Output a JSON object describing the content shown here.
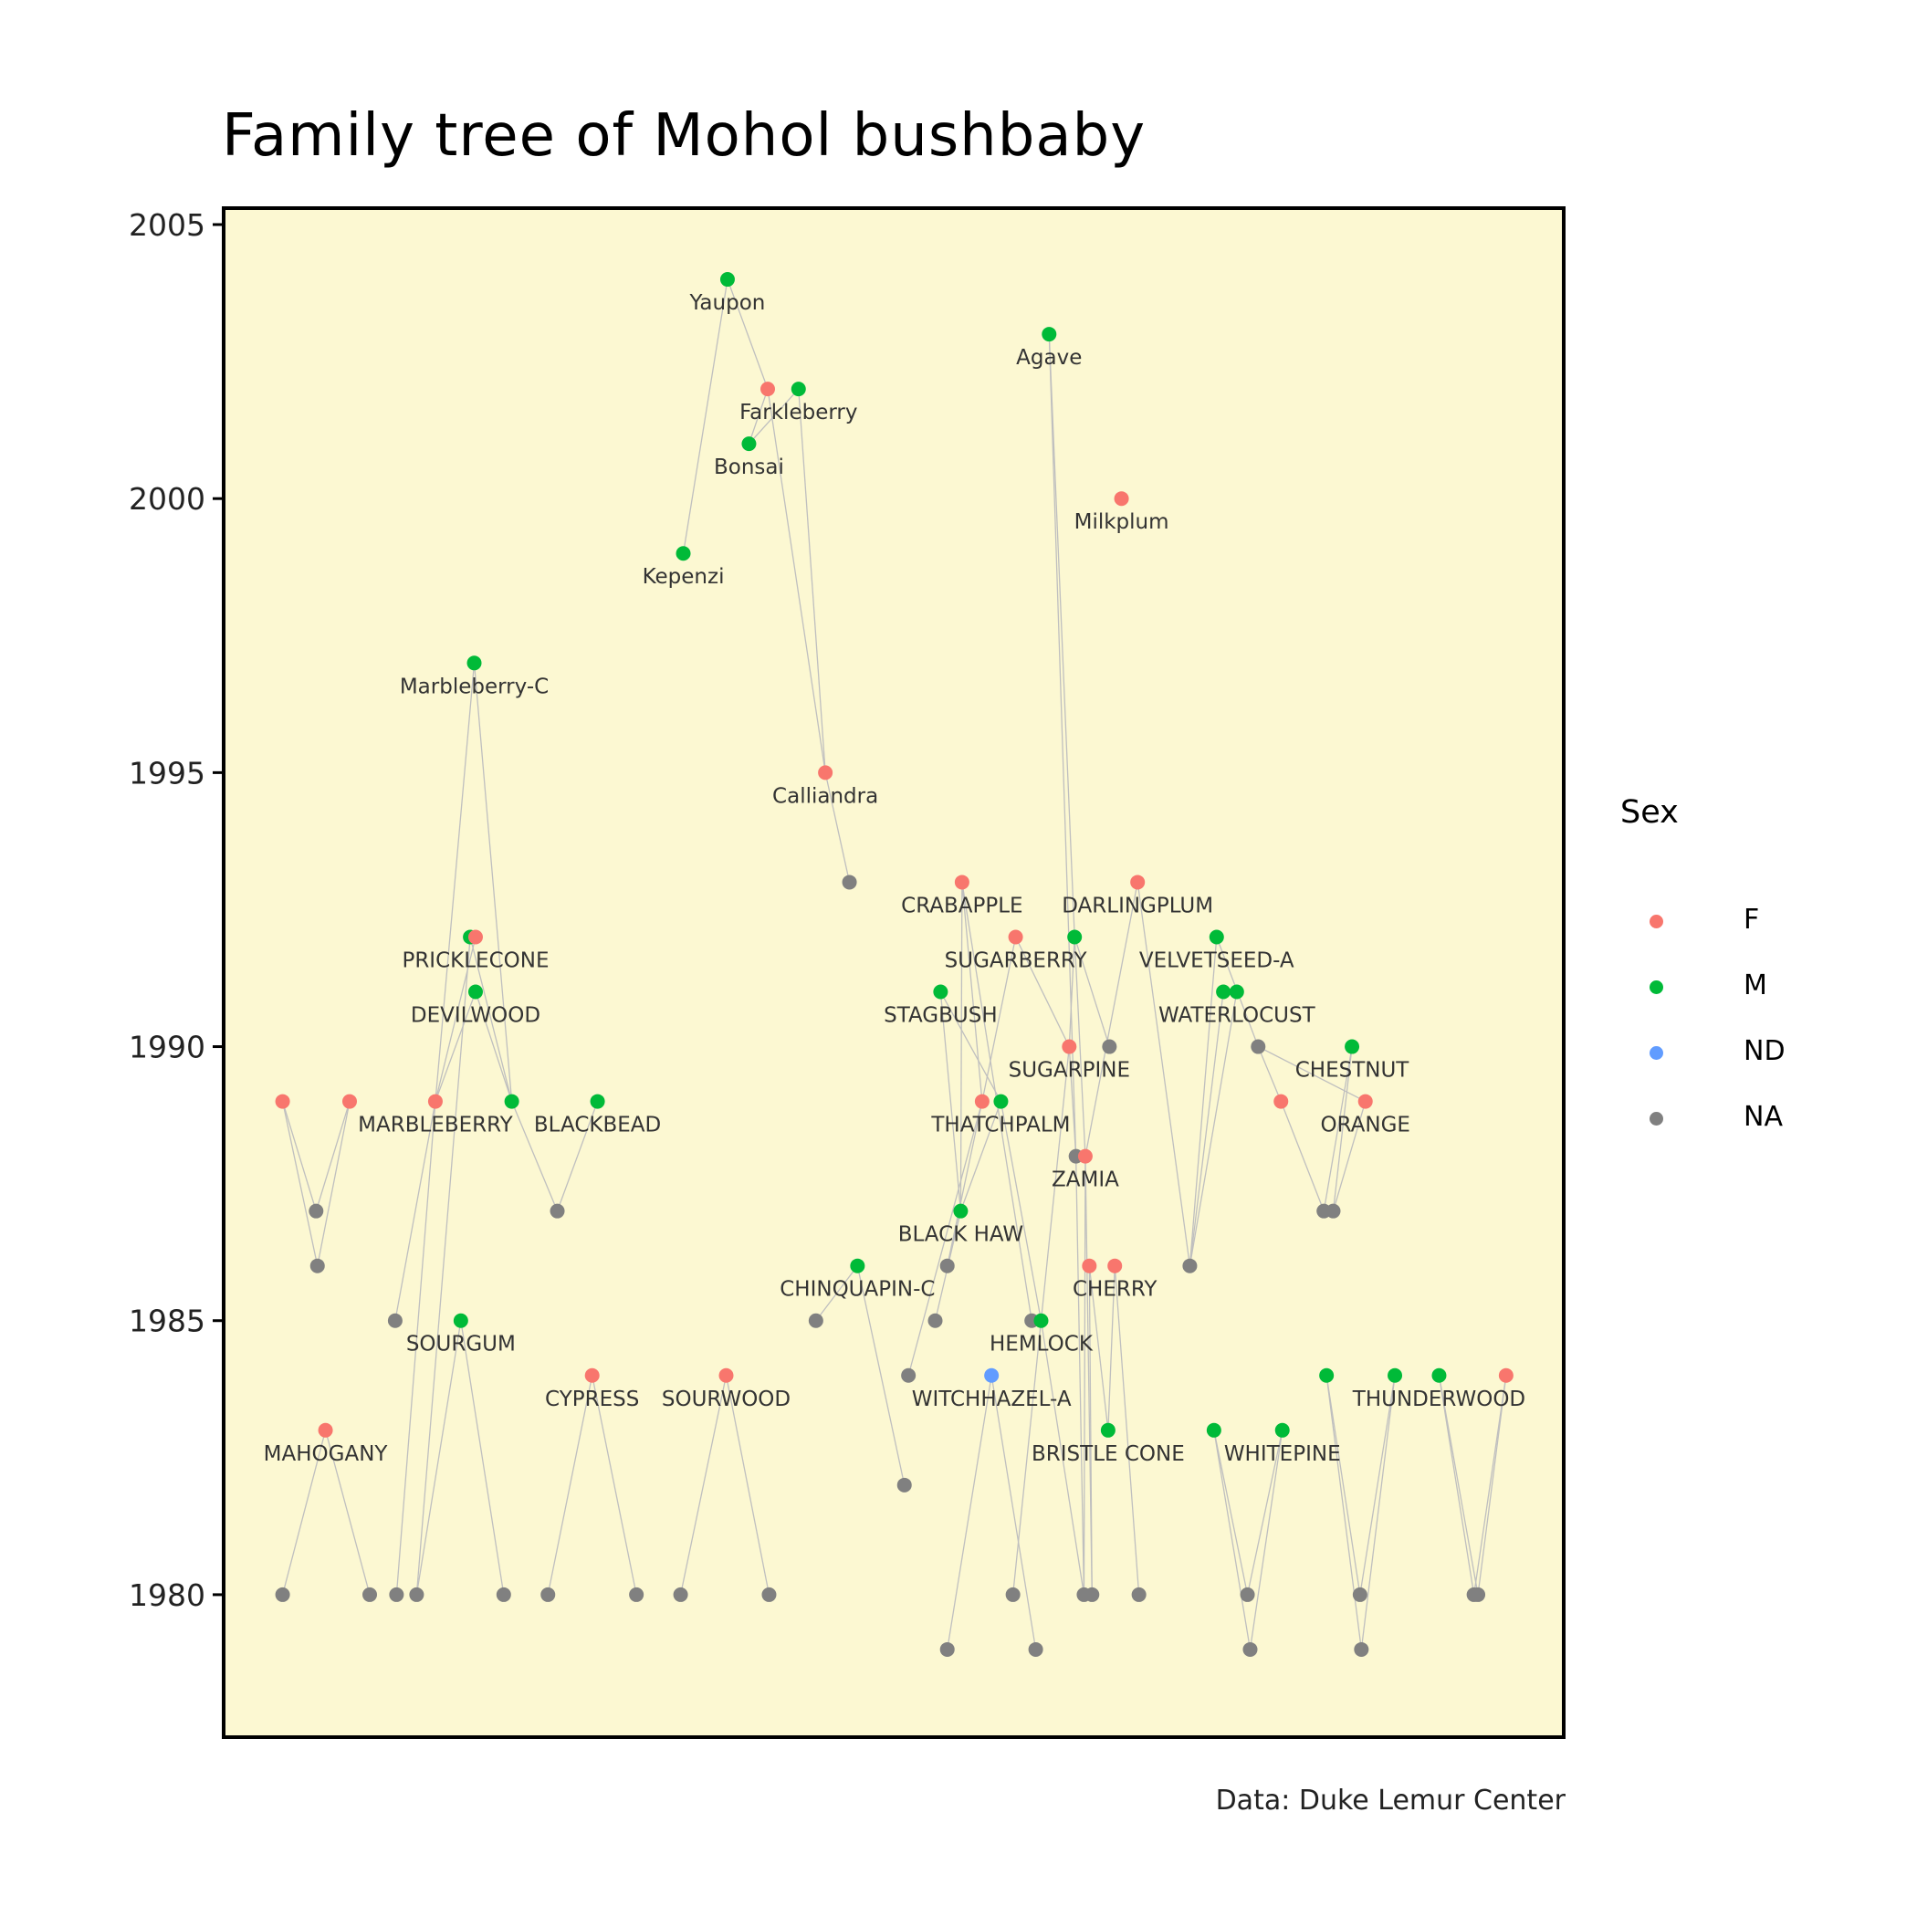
{
  "title": "Family tree of Mohol bushbaby",
  "caption": "Data: Duke Lemur Center",
  "legend": {
    "title": "Sex",
    "items": [
      {
        "label": "F",
        "color": "#F8766D"
      },
      {
        "label": "M",
        "color": "#00BA38"
      },
      {
        "label": "ND",
        "color": "#619CFF"
      },
      {
        "label": "NA",
        "color": "#808080"
      }
    ]
  },
  "chart_data": {
    "type": "scatter",
    "title": "Family tree of Mohol bushbaby",
    "xlabel": "",
    "ylabel": "",
    "x_axis_visible": false,
    "xlim": [
      0,
      100
    ],
    "ylim": [
      1977.4,
      2005.3
    ],
    "y_ticks": [
      1980,
      1985,
      1990,
      1995,
      2000,
      2005
    ],
    "background": "#FCF8D2",
    "grid": false,
    "legend_position": "right",
    "edge_color": "#BFBFBF",
    "colors": {
      "F": "#F8766D",
      "M": "#00BA38",
      "ND": "#619CFF",
      "NA": "#808080"
    },
    "points": [
      {
        "id": "Yaupon",
        "label": "Yaupon",
        "x": 37.6,
        "y": 2004,
        "sex": "M"
      },
      {
        "id": "Agave",
        "label": "Agave",
        "x": 61.6,
        "y": 2003,
        "sex": "M"
      },
      {
        "id": "FarkF",
        "label": "",
        "x": 40.6,
        "y": 2002,
        "sex": "F"
      },
      {
        "id": "Farkleberry",
        "label": "Farkleberry",
        "x": 42.9,
        "y": 2002,
        "sex": "M"
      },
      {
        "id": "Bonsai",
        "label": "Bonsai",
        "x": 39.2,
        "y": 2001,
        "sex": "M"
      },
      {
        "id": "Milkplum",
        "label": "Milkplum",
        "x": 67.0,
        "y": 2000,
        "sex": "F"
      },
      {
        "id": "Kepenzi",
        "label": "Kepenzi",
        "x": 34.3,
        "y": 1999,
        "sex": "M"
      },
      {
        "id": "MarbleberryC",
        "label": "Marbleberry-C",
        "x": 18.7,
        "y": 1997,
        "sex": "M"
      },
      {
        "id": "Calliandra",
        "label": "Calliandra",
        "x": 44.9,
        "y": 1995,
        "sex": "F"
      },
      {
        "id": "n1993",
        "label": "",
        "x": 46.7,
        "y": 1993,
        "sex": "NA"
      },
      {
        "id": "CRABAPPLE",
        "label": "CRABAPPLE",
        "x": 55.1,
        "y": 1993,
        "sex": "F"
      },
      {
        "id": "DARLINGPLUM",
        "label": "DARLINGPLUM",
        "x": 68.2,
        "y": 1993,
        "sex": "F"
      },
      {
        "id": "PrickM",
        "label": "",
        "x": 18.4,
        "y": 1992,
        "sex": "M"
      },
      {
        "id": "PRICKLECONE",
        "label": "PRICKLECONE",
        "x": 18.8,
        "y": 1992,
        "sex": "F"
      },
      {
        "id": "SUGARBERRY",
        "label": "SUGARBERRY",
        "x": 59.1,
        "y": 1992,
        "sex": "F"
      },
      {
        "id": "SugM",
        "label": "",
        "x": 63.5,
        "y": 1992,
        "sex": "M"
      },
      {
        "id": "VELVETSEED",
        "label": "VELVETSEED-A",
        "x": 74.1,
        "y": 1992,
        "sex": "M"
      },
      {
        "id": "DEVILWOOD",
        "label": "DEVILWOOD",
        "x": 18.8,
        "y": 1991,
        "sex": "M"
      },
      {
        "id": "STAGBUSH",
        "label": "STAGBUSH",
        "x": 53.5,
        "y": 1991,
        "sex": "M"
      },
      {
        "id": "WatM1",
        "label": "",
        "x": 74.6,
        "y": 1991,
        "sex": "M"
      },
      {
        "id": "WATERLOCUST",
        "label": "WATERLOCUST",
        "x": 75.6,
        "y": 1991,
        "sex": "M"
      },
      {
        "id": "SUGARPINE",
        "label": "SUGARPINE",
        "x": 63.1,
        "y": 1990,
        "sex": "F"
      },
      {
        "id": "n1990a",
        "label": "",
        "x": 66.1,
        "y": 1990,
        "sex": "NA"
      },
      {
        "id": "n1990b",
        "label": "",
        "x": 77.2,
        "y": 1990,
        "sex": "NA"
      },
      {
        "id": "CHESTNUT",
        "label": "CHESTNUT",
        "x": 84.2,
        "y": 1990,
        "sex": "M"
      },
      {
        "id": "F1",
        "label": "",
        "x": 4.4,
        "y": 1989,
        "sex": "F"
      },
      {
        "id": "F2",
        "label": "",
        "x": 9.4,
        "y": 1989,
        "sex": "F"
      },
      {
        "id": "MARBLEBERRY",
        "label": "MARBLEBERRY",
        "x": 15.8,
        "y": 1989,
        "sex": "F"
      },
      {
        "id": "M1989",
        "label": "",
        "x": 21.5,
        "y": 1989,
        "sex": "M"
      },
      {
        "id": "BLACKBEAD",
        "label": "BLACKBEAD",
        "x": 27.9,
        "y": 1989,
        "sex": "M"
      },
      {
        "id": "ThatF",
        "label": "",
        "x": 56.6,
        "y": 1989,
        "sex": "F"
      },
      {
        "id": "THATCHPALM",
        "label": "THATCHPALM",
        "x": 58.0,
        "y": 1989,
        "sex": "M"
      },
      {
        "id": "F1989b",
        "label": "",
        "x": 78.9,
        "y": 1989,
        "sex": "F"
      },
      {
        "id": "ORANGE",
        "label": "ORANGE",
        "x": 85.2,
        "y": 1989,
        "sex": "F"
      },
      {
        "id": "n1988",
        "label": "",
        "x": 63.6,
        "y": 1988,
        "sex": "NA"
      },
      {
        "id": "ZAMIA",
        "label": "ZAMIA",
        "x": 64.3,
        "y": 1988,
        "sex": "F"
      },
      {
        "id": "n1987a",
        "label": "",
        "x": 6.9,
        "y": 1987,
        "sex": "NA"
      },
      {
        "id": "n1987b",
        "label": "",
        "x": 24.9,
        "y": 1987,
        "sex": "NA"
      },
      {
        "id": "BLACKHAW",
        "label": "BLACK HAW",
        "x": 55.0,
        "y": 1987,
        "sex": "M"
      },
      {
        "id": "n1987c",
        "label": "",
        "x": 82.1,
        "y": 1987,
        "sex": "NA"
      },
      {
        "id": "n1987d",
        "label": "",
        "x": 82.8,
        "y": 1987,
        "sex": "NA"
      },
      {
        "id": "n1986a",
        "label": "",
        "x": 7.0,
        "y": 1986,
        "sex": "NA"
      },
      {
        "id": "CHINQUAPIN",
        "label": "CHINQUAPIN-C",
        "x": 47.3,
        "y": 1986,
        "sex": "M"
      },
      {
        "id": "n1986b",
        "label": "",
        "x": 54.0,
        "y": 1986,
        "sex": "NA"
      },
      {
        "id": "CherF",
        "label": "",
        "x": 64.6,
        "y": 1986,
        "sex": "F"
      },
      {
        "id": "CHERRY",
        "label": "CHERRY",
        "x": 66.5,
        "y": 1986,
        "sex": "F"
      },
      {
        "id": "n1986c",
        "label": "",
        "x": 72.1,
        "y": 1986,
        "sex": "NA"
      },
      {
        "id": "n1985a",
        "label": "",
        "x": 12.8,
        "y": 1985,
        "sex": "NA"
      },
      {
        "id": "SOURGUM",
        "label": "SOURGUM",
        "x": 17.7,
        "y": 1985,
        "sex": "M"
      },
      {
        "id": "n1985b",
        "label": "",
        "x": 44.2,
        "y": 1985,
        "sex": "NA"
      },
      {
        "id": "n1985c",
        "label": "",
        "x": 53.1,
        "y": 1985,
        "sex": "NA"
      },
      {
        "id": "n1985d",
        "label": "",
        "x": 60.3,
        "y": 1985,
        "sex": "NA"
      },
      {
        "id": "HEMLOCK",
        "label": "HEMLOCK",
        "x": 61.0,
        "y": 1985,
        "sex": "M"
      },
      {
        "id": "CYPRESS",
        "label": "CYPRESS",
        "x": 27.5,
        "y": 1984,
        "sex": "F"
      },
      {
        "id": "SOURWOOD",
        "label": "SOURWOOD",
        "x": 37.5,
        "y": 1984,
        "sex": "F"
      },
      {
        "id": "n1984",
        "label": "",
        "x": 51.1,
        "y": 1984,
        "sex": "NA"
      },
      {
        "id": "WITCHHAZEL",
        "label": "WITCHHAZEL-A",
        "x": 57.3,
        "y": 1984,
        "sex": "ND"
      },
      {
        "id": "M1984a",
        "label": "",
        "x": 82.3,
        "y": 1984,
        "sex": "M"
      },
      {
        "id": "M1984b",
        "label": "",
        "x": 87.4,
        "y": 1984,
        "sex": "M"
      },
      {
        "id": "THUNDERWOOD",
        "label": "THUNDERWOOD",
        "x": 90.7,
        "y": 1984,
        "sex": "M"
      },
      {
        "id": "F1984",
        "label": "",
        "x": 95.7,
        "y": 1984,
        "sex": "F"
      },
      {
        "id": "MAHOGANY",
        "label": "MAHOGANY",
        "x": 7.6,
        "y": 1983,
        "sex": "F"
      },
      {
        "id": "BRISTLECONE",
        "label": "BRISTLE CONE",
        "x": 66.0,
        "y": 1983,
        "sex": "M"
      },
      {
        "id": "M1983",
        "label": "",
        "x": 73.9,
        "y": 1983,
        "sex": "M"
      },
      {
        "id": "WHITEPINE",
        "label": "WHITEPINE",
        "x": 79.0,
        "y": 1983,
        "sex": "M"
      },
      {
        "id": "n1982",
        "label": "",
        "x": 50.8,
        "y": 1982,
        "sex": "NA"
      },
      {
        "id": "b01",
        "label": "",
        "x": 4.4,
        "y": 1980,
        "sex": "NA"
      },
      {
        "id": "b02",
        "label": "",
        "x": 10.9,
        "y": 1980,
        "sex": "NA"
      },
      {
        "id": "b03",
        "label": "",
        "x": 12.9,
        "y": 1980,
        "sex": "NA"
      },
      {
        "id": "b04",
        "label": "",
        "x": 14.4,
        "y": 1980,
        "sex": "NA"
      },
      {
        "id": "b05",
        "label": "",
        "x": 20.9,
        "y": 1980,
        "sex": "NA"
      },
      {
        "id": "b06",
        "label": "",
        "x": 24.2,
        "y": 1980,
        "sex": "NA"
      },
      {
        "id": "b07",
        "label": "",
        "x": 30.8,
        "y": 1980,
        "sex": "NA"
      },
      {
        "id": "b08",
        "label": "",
        "x": 34.1,
        "y": 1980,
        "sex": "NA"
      },
      {
        "id": "b09",
        "label": "",
        "x": 40.7,
        "y": 1980,
        "sex": "NA"
      },
      {
        "id": "b10",
        "label": "",
        "x": 58.9,
        "y": 1980,
        "sex": "NA"
      },
      {
        "id": "b11",
        "label": "",
        "x": 64.2,
        "y": 1980,
        "sex": "NA"
      },
      {
        "id": "b12",
        "label": "",
        "x": 64.8,
        "y": 1980,
        "sex": "NA"
      },
      {
        "id": "b13",
        "label": "",
        "x": 68.3,
        "y": 1980,
        "sex": "NA"
      },
      {
        "id": "b14",
        "label": "",
        "x": 76.4,
        "y": 1980,
        "sex": "NA"
      },
      {
        "id": "b15",
        "label": "",
        "x": 84.8,
        "y": 1980,
        "sex": "NA"
      },
      {
        "id": "b16",
        "label": "",
        "x": 93.3,
        "y": 1980,
        "sex": "NA"
      },
      {
        "id": "b17",
        "label": "",
        "x": 93.6,
        "y": 1980,
        "sex": "NA"
      },
      {
        "id": "c01",
        "label": "",
        "x": 54.0,
        "y": 1979,
        "sex": "NA"
      },
      {
        "id": "c02",
        "label": "",
        "x": 60.6,
        "y": 1979,
        "sex": "NA"
      },
      {
        "id": "c03",
        "label": "",
        "x": 76.6,
        "y": 1979,
        "sex": "NA"
      },
      {
        "id": "c04",
        "label": "",
        "x": 84.9,
        "y": 1979,
        "sex": "NA"
      }
    ],
    "edges": [
      [
        "Yaupon",
        "Kepenzi"
      ],
      [
        "Yaupon",
        "FarkF"
      ],
      [
        "FarkF",
        "Bonsai"
      ],
      [
        "Farkleberry",
        "Bonsai"
      ],
      [
        "FarkF",
        "Calliandra"
      ],
      [
        "Farkleberry",
        "Calliandra"
      ],
      [
        "Calliandra",
        "n1993"
      ],
      [
        "Agave",
        "SugM"
      ],
      [
        "Agave",
        "n1988"
      ],
      [
        "MarbleberryC",
        "MARBLEBERRY"
      ],
      [
        "MarbleberryC",
        "M1989"
      ],
      [
        "PRICKLECONE",
        "MARBLEBERRY"
      ],
      [
        "PrickM",
        "M1989"
      ],
      [
        "DEVILWOOD",
        "MARBLEBERRY"
      ],
      [
        "DEVILWOOD",
        "M1989"
      ],
      [
        "F1",
        "n1987a"
      ],
      [
        "F1",
        "n1986a"
      ],
      [
        "F2",
        "n1987a"
      ],
      [
        "F2",
        "n1986a"
      ],
      [
        "MARBLEBERRY",
        "n1985a"
      ],
      [
        "MARBLEBERRY",
        "b03"
      ],
      [
        "PrickM",
        "b04"
      ],
      [
        "M1989",
        "n1987b"
      ],
      [
        "BLACKBEAD",
        "n1987b"
      ],
      [
        "SOURGUM",
        "b04"
      ],
      [
        "SOURGUM",
        "b05"
      ],
      [
        "MAHOGANY",
        "b01"
      ],
      [
        "MAHOGANY",
        "b02"
      ],
      [
        "CYPRESS",
        "b06"
      ],
      [
        "CYPRESS",
        "b07"
      ],
      [
        "SOURWOOD",
        "b08"
      ],
      [
        "SOURWOOD",
        "b09"
      ],
      [
        "CRABAPPLE",
        "BLACKHAW"
      ],
      [
        "CRABAPPLE",
        "ThatF"
      ],
      [
        "CRABAPPLE",
        "n1985d"
      ],
      [
        "SUGARBERRY",
        "ThatF"
      ],
      [
        "SUGARBERRY",
        "SUGARPINE"
      ],
      [
        "STAGBUSH",
        "BLACKHAW"
      ],
      [
        "STAGBUSH",
        "THATCHPALM"
      ],
      [
        "SugM",
        "SUGARPINE"
      ],
      [
        "SugM",
        "ZAMIA"
      ],
      [
        "SugM",
        "n1990a"
      ],
      [
        "DARLINGPLUM",
        "ZAMIA"
      ],
      [
        "DARLINGPLUM",
        "n1986c"
      ],
      [
        "SUGARPINE",
        "n1988"
      ],
      [
        "SUGARPINE",
        "HEMLOCK"
      ],
      [
        "ThatF",
        "n1986b"
      ],
      [
        "ThatF",
        "n1984"
      ],
      [
        "THATCHPALM",
        "BLACKHAW"
      ],
      [
        "THATCHPALM",
        "HEMLOCK"
      ],
      [
        "BLACKHAW",
        "n1986b"
      ],
      [
        "BLACKHAW",
        "n1985c"
      ],
      [
        "n1988",
        "b11"
      ],
      [
        "ZAMIA",
        "b12"
      ],
      [
        "ZAMIA",
        "b11"
      ],
      [
        "CherF",
        "b12"
      ],
      [
        "CherF",
        "BRISTLECONE"
      ],
      [
        "CHERRY",
        "BRISTLECONE"
      ],
      [
        "CHERRY",
        "b13"
      ],
      [
        "CHINQUAPIN",
        "n1985b"
      ],
      [
        "CHINQUAPIN",
        "n1982"
      ],
      [
        "HEMLOCK",
        "b10"
      ],
      [
        "HEMLOCK",
        "b11"
      ],
      [
        "WITCHHAZEL",
        "c01"
      ],
      [
        "WITCHHAZEL",
        "c02"
      ],
      [
        "VELVETSEED",
        "n1986c"
      ],
      [
        "VELVETSEED",
        "n1990b"
      ],
      [
        "WatM1",
        "n1986c"
      ],
      [
        "WATERLOCUST",
        "n1986c"
      ],
      [
        "n1990b",
        "F1989b"
      ],
      [
        "n1990b",
        "ORANGE"
      ],
      [
        "CHESTNUT",
        "n1987c"
      ],
      [
        "CHESTNUT",
        "n1987d"
      ],
      [
        "F1989b",
        "n1987c"
      ],
      [
        "ORANGE",
        "n1987d"
      ],
      [
        "M1983",
        "b14"
      ],
      [
        "M1983",
        "c03"
      ],
      [
        "WHITEPINE",
        "b14"
      ],
      [
        "WHITEPINE",
        "c03"
      ],
      [
        "M1984a",
        "b15"
      ],
      [
        "M1984a",
        "c04"
      ],
      [
        "M1984b",
        "b15"
      ],
      [
        "M1984b",
        "c04"
      ],
      [
        "THUNDERWOOD",
        "b16"
      ],
      [
        "THUNDERWOOD",
        "b17"
      ],
      [
        "F1984",
        "b16"
      ],
      [
        "F1984",
        "b17"
      ]
    ]
  }
}
